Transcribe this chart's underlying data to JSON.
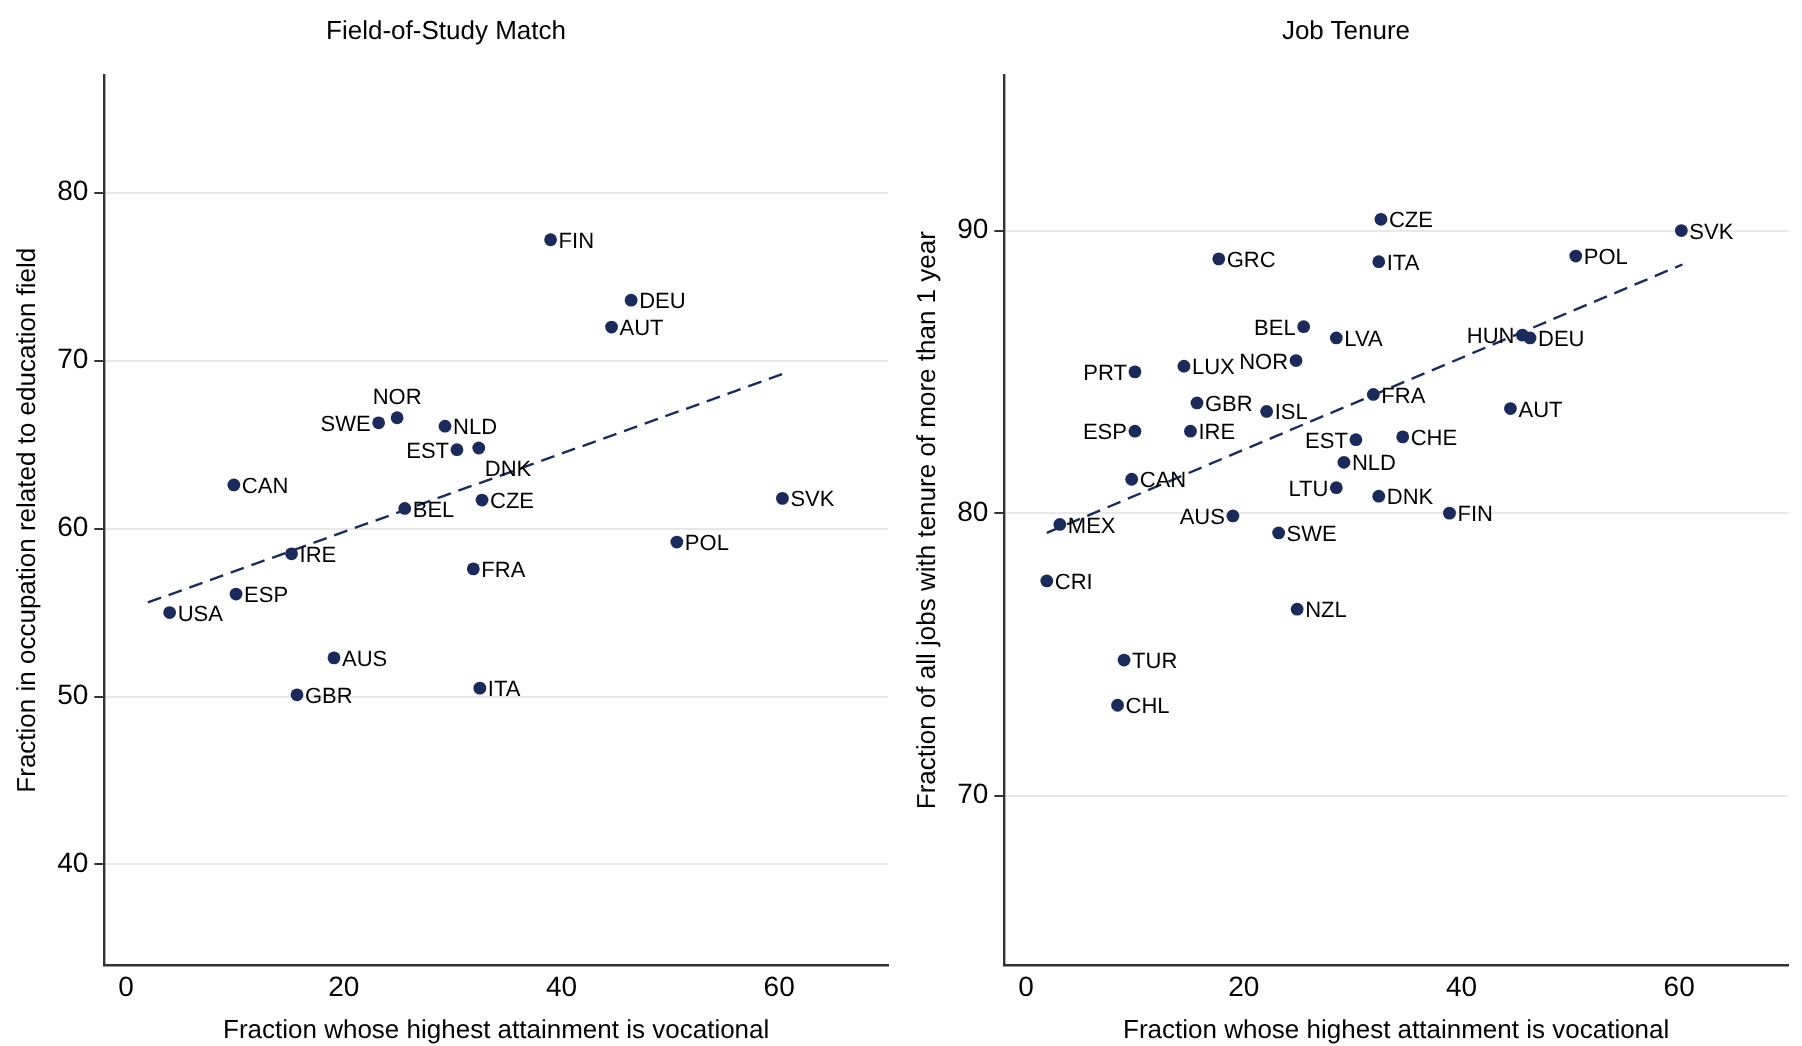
{
  "chart_data": [
    {
      "type": "scatter",
      "title": "Field-of-Study Match",
      "xlabel": "Fraction whose highest attainment is vocational",
      "ylabel": "Fraction in occupation related to education field",
      "xlim": [
        -2,
        70
      ],
      "xticks": [
        0,
        20,
        40,
        60
      ],
      "ylim": [
        34,
        87
      ],
      "yticks": [
        40,
        50,
        60,
        70,
        80
      ],
      "grid": "y",
      "marker": "circle",
      "series": [
        {
          "type": "scatter",
          "color": "#1a2a5a",
          "x": [
            39.0,
            46.4,
            44.6,
            24.9,
            23.2,
            29.3,
            30.4,
            32.4,
            9.9,
            25.6,
            32.7,
            60.3,
            50.6,
            15.2,
            31.9,
            10.1,
            4.0,
            19.1,
            15.7,
            32.5
          ],
          "values": [
            77.2,
            73.6,
            72.0,
            66.6,
            66.3,
            66.1,
            64.7,
            64.8,
            62.6,
            61.2,
            61.7,
            61.8,
            59.2,
            58.5,
            57.6,
            56.1,
            55.0,
            52.3,
            50.1,
            50.5
          ],
          "value_labels": [
            "FIN",
            "DEU",
            "AUT",
            "NOR",
            "SWE",
            "NLD",
            "EST",
            "DNK",
            "CAN",
            "BEL",
            "CZE",
            "SVK",
            "POL",
            "IRE",
            "FRA",
            "ESP",
            "USA",
            "AUS",
            "GBR",
            "ITA"
          ]
        },
        {
          "type": "line",
          "color": "#1a2a5a",
          "line_style": "dashed",
          "marker": "none",
          "x": [
            2,
            60.3
          ],
          "values": [
            55.6,
            69.2
          ]
        }
      ]
    },
    {
      "type": "scatter",
      "title": "Job Tenure",
      "xlabel": "Fraction whose highest attainment is vocational",
      "ylabel": "Fraction of all jobs with tenure of more than 1 year",
      "xlim": [
        -2,
        70
      ],
      "xticks": [
        0,
        20,
        40,
        60
      ],
      "ylim": [
        64,
        95.5
      ],
      "yticks": [
        70,
        80,
        90
      ],
      "grid": "y",
      "marker": "circle",
      "series": [
        {
          "type": "scatter",
          "color": "#1a2a5a",
          "x": [
            32.6,
            60.2,
            17.7,
            32.4,
            50.5,
            25.5,
            28.5,
            45.6,
            46.3,
            10.0,
            14.5,
            24.8,
            31.9,
            44.5,
            15.7,
            22.1,
            10.0,
            15.1,
            30.3,
            34.6,
            29.2,
            9.7,
            28.5,
            32.4,
            38.9,
            19.0,
            23.2,
            3.1,
            1.9,
            24.9,
            9.0,
            8.4
          ],
          "values": [
            90.4,
            90.0,
            89.0,
            88.9,
            89.1,
            86.6,
            86.2,
            86.3,
            86.2,
            85.0,
            85.2,
            85.4,
            84.2,
            83.7,
            83.9,
            83.6,
            82.9,
            82.9,
            82.6,
            82.7,
            81.8,
            81.2,
            80.9,
            80.6,
            80.0,
            79.9,
            79.3,
            79.6,
            77.6,
            76.6,
            74.8,
            73.2
          ],
          "value_labels": [
            "CZE",
            "SVK",
            "GRC",
            "ITA",
            "POL",
            "BEL",
            "LVA",
            "HUN",
            "DEU",
            "PRT",
            "LUX",
            "NOR",
            "FRA",
            "AUT",
            "GBR",
            "ISL",
            "ESP",
            "IRE",
            "EST",
            "CHE",
            "NLD",
            "CAN",
            "LTU",
            "DNK",
            "FIN",
            "AUS",
            "SWE",
            "MEX",
            "CRI",
            "NZL",
            "TUR",
            "CHL"
          ]
        },
        {
          "type": "line",
          "color": "#1a2a5a",
          "line_style": "dashed",
          "marker": "none",
          "x": [
            1.9,
            60.3
          ],
          "values": [
            79.3,
            88.8
          ]
        }
      ]
    }
  ]
}
